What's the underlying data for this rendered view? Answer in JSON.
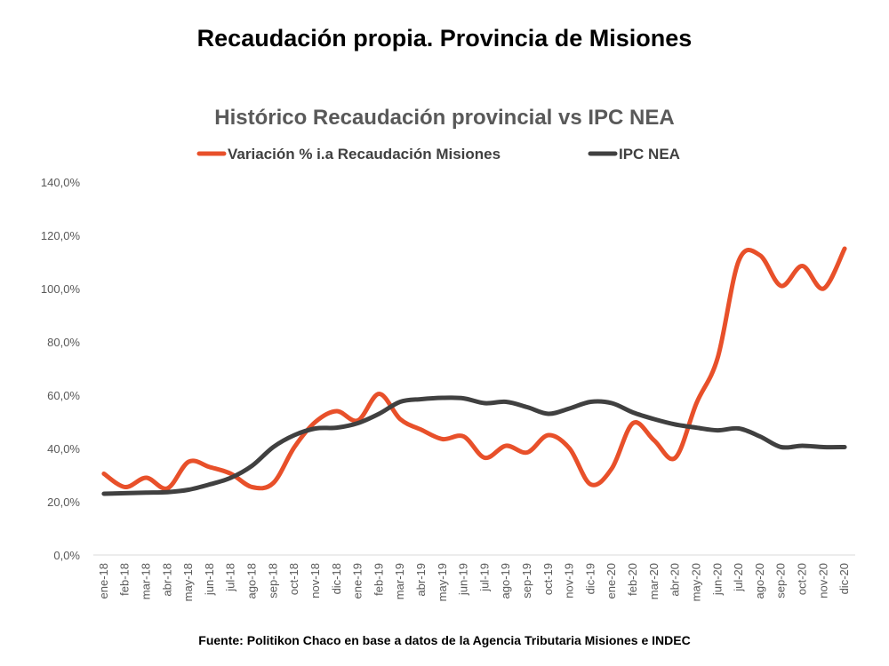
{
  "header": {
    "title": "Recaudación propia. Provincia de Misiones"
  },
  "footer": {
    "source": "Fuente: Politikon Chaco en base a datos de la Agencia Tributaria Misiones e INDEC"
  },
  "chart_data": {
    "type": "line",
    "title": "Histórico Recaudación provincial vs IPC NEA",
    "xlabel": "",
    "ylabel": "",
    "ylim": [
      0,
      140
    ],
    "y_ticks": [
      "0,0%",
      "20,0%",
      "40,0%",
      "60,0%",
      "80,0%",
      "100,0%",
      "120,0%",
      "140,0%"
    ],
    "legend_position": "top",
    "grid": false,
    "categories": [
      "ene-18",
      "feb-18",
      "mar-18",
      "abr-18",
      "may-18",
      "jun-18",
      "jul-18",
      "ago-18",
      "sep-18",
      "oct-18",
      "nov-18",
      "dic-18",
      "ene-19",
      "feb-19",
      "mar-19",
      "abr-19",
      "may-19",
      "jun-19",
      "jul-19",
      "ago-19",
      "sep-19",
      "oct-19",
      "nov-19",
      "dic-19",
      "ene-20",
      "feb-20",
      "mar-20",
      "abr-20",
      "may-20",
      "jun-20",
      "jul-20",
      "ago-20",
      "sep-20",
      "oct-20",
      "nov-20",
      "dic-20"
    ],
    "series": [
      {
        "name": "Variación % i.a Recaudación Misiones",
        "color": "#E8502A",
        "values": [
          30.5,
          25.5,
          29,
          25,
          35,
          33,
          30.5,
          25.5,
          27,
          40.5,
          50,
          54,
          50.5,
          60.5,
          51,
          47,
          43.5,
          44.5,
          36.5,
          41,
          38.5,
          45,
          40,
          26.5,
          32.5,
          49.5,
          43,
          36.5,
          57,
          74,
          110.5,
          112.5,
          101,
          108.5,
          100,
          115
        ]
      },
      {
        "name": "IPC NEA",
        "color": "#404040",
        "values": [
          23,
          23.2,
          23.4,
          23.6,
          24.5,
          26.5,
          29,
          33.5,
          40.5,
          45,
          47.5,
          47.8,
          49.5,
          53,
          57.5,
          58.5,
          59,
          58.8,
          57,
          57.5,
          55.5,
          53,
          55,
          57.5,
          57,
          53.5,
          51,
          49,
          47.8,
          46.8,
          47.5,
          44.5,
          40.5,
          41,
          40.5,
          40.5
        ]
      }
    ]
  }
}
